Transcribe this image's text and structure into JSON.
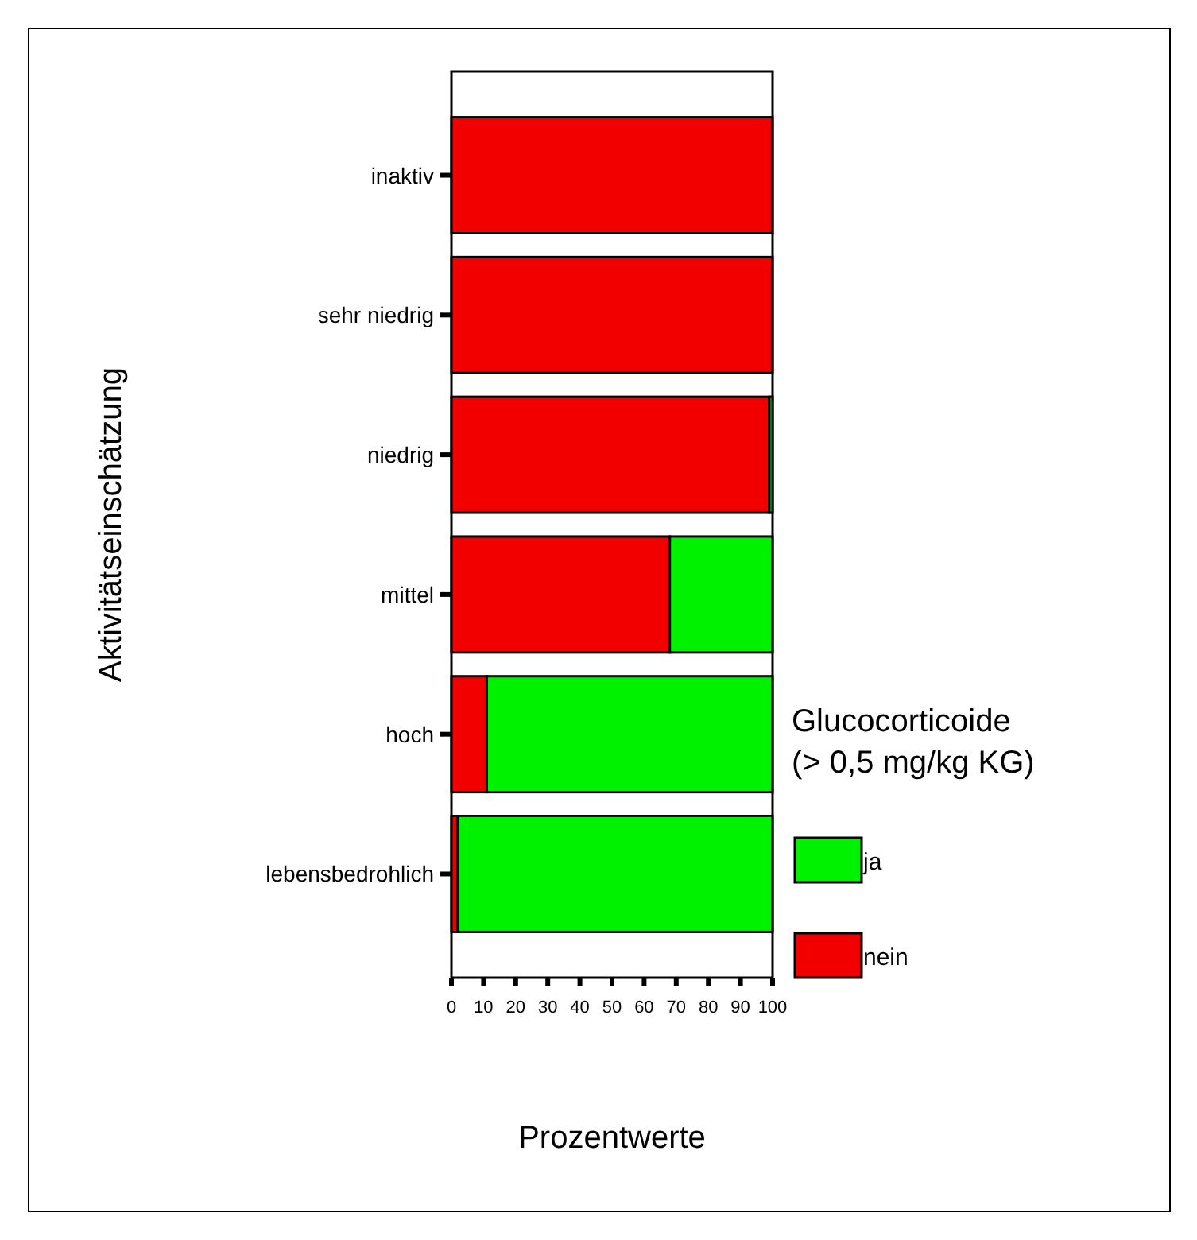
{
  "chart_data": {
    "type": "bar",
    "orientation": "horizontal",
    "stacked": true,
    "categories": [
      "inaktiv",
      "sehr niedrig",
      "niedrig",
      "mittel",
      "hoch",
      "lebensbedrohlich"
    ],
    "series": [
      {
        "name": "nein",
        "color": "#f20000",
        "values": [
          100,
          100,
          99,
          68,
          11,
          2
        ]
      },
      {
        "name": "ja",
        "color": "#00f200",
        "values": [
          0,
          0,
          1,
          32,
          89,
          98
        ]
      }
    ],
    "xlim": [
      0,
      100
    ],
    "xticks": [
      0,
      10,
      20,
      30,
      40,
      50,
      60,
      70,
      80,
      90,
      100
    ],
    "xlabel": "Prozentwerte",
    "ylabel": "Aktivitätseinschätzung",
    "legend_title": "Glucocorticoide\n(> 0,5 mg/kg KG)",
    "legend": "right",
    "grid": false
  }
}
